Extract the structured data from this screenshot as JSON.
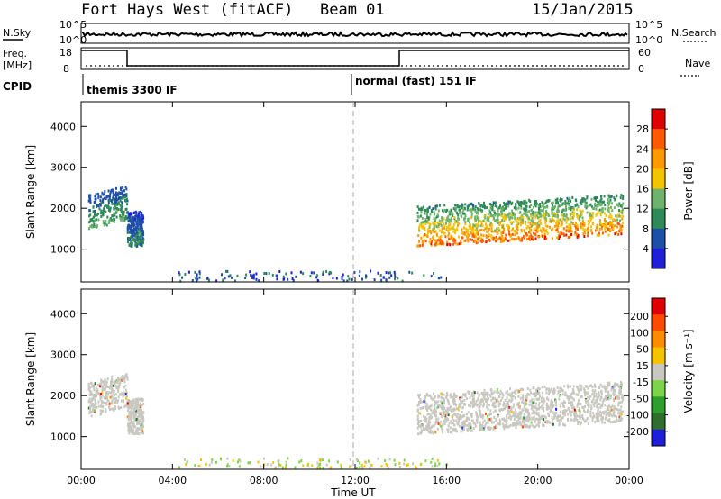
{
  "header": {
    "title": "Fort Hays West (fitACF)",
    "beam": "Beam 01",
    "date": "15/Jan/2015"
  },
  "status_panel": {
    "nsky_label": "N.Sky",
    "nsearch_label": "N.Search",
    "left_ticks": [
      "10^5",
      "10^0"
    ],
    "right_ticks": [
      "10^5",
      "10^0"
    ],
    "freq_label": "Freq.",
    "freq_unit": "[MHz]",
    "freq_ticks": [
      "18",
      "8"
    ],
    "nave_label": "Nave",
    "nave_ticks": [
      "60",
      "0"
    ],
    "cpid_label": "CPID",
    "cpid_programs": [
      "themis 3300 IF",
      "normal (fast) 151 IF"
    ]
  },
  "chart_data": [
    {
      "type": "heatmap",
      "name": "power",
      "ylabel": "Slant Range [km]",
      "y_ticks": [
        1000,
        2000,
        3000,
        4000
      ],
      "ylim": [
        200,
        4600
      ],
      "xlim_hours": [
        0,
        24
      ],
      "x_ticks": [
        "00:00",
        "04:00",
        "08:00",
        "12:00",
        "16:00",
        "20:00",
        "00:00"
      ],
      "colorbar_label": "Power [dB]",
      "colorbar_ticks": [
        "4",
        "8",
        "12",
        "16",
        "20",
        "24",
        "28"
      ],
      "colorbar_range": [
        0,
        30
      ],
      "colors": [
        "#1f1fd9",
        "#1e4fa6",
        "#2e8b57",
        "#6db36d",
        "#f5c400",
        "#ff9900",
        "#ff5a00",
        "#e00000"
      ],
      "scatter_regions": [
        {
          "x": [
            0.3,
            2.0
          ],
          "y": [
            1500,
            2500
          ],
          "peak_db": 14
        },
        {
          "x": [
            2.0,
            2.7
          ],
          "y": [
            1100,
            2100
          ],
          "peak_db": 10
        },
        {
          "x": [
            14.7,
            23.7
          ],
          "y": [
            1150,
            2300
          ],
          "peak_db": 26
        }
      ]
    },
    {
      "type": "heatmap",
      "name": "velocity",
      "ylabel": "Slant Range [km]",
      "y_ticks": [
        1000,
        2000,
        3000,
        4000
      ],
      "ylim": [
        200,
        4600
      ],
      "xlim_hours": [
        0,
        24
      ],
      "x_ticks": [
        "00:00",
        "04:00",
        "08:00",
        "12:00",
        "16:00",
        "20:00",
        "00:00"
      ],
      "xlabel": "Time UT",
      "colorbar_label": "Velocity [m s⁻¹]",
      "colorbar_ticks": [
        "200",
        "100",
        "50",
        "15",
        "-15",
        "-50",
        "-100",
        "-200"
      ],
      "colorbar_range": [
        -250,
        250
      ],
      "colors": [
        "#1f1fd9",
        "#2e6f2e",
        "#2e9e2e",
        "#7bd44a",
        "#c8c8c0",
        "#f5c400",
        "#ff8c00",
        "#ff4a00",
        "#e00000"
      ],
      "ground_scatter_color": "#c8c8c0",
      "scatter_regions": [
        {
          "x": [
            0.3,
            2.0
          ],
          "y": [
            1500,
            2500
          ],
          "velocity": 0
        },
        {
          "x": [
            2.0,
            2.7
          ],
          "y": [
            1100,
            2100
          ],
          "velocity": 0
        },
        {
          "x": [
            14.7,
            23.7
          ],
          "y": [
            1150,
            2300
          ],
          "velocity": 0
        }
      ]
    }
  ]
}
